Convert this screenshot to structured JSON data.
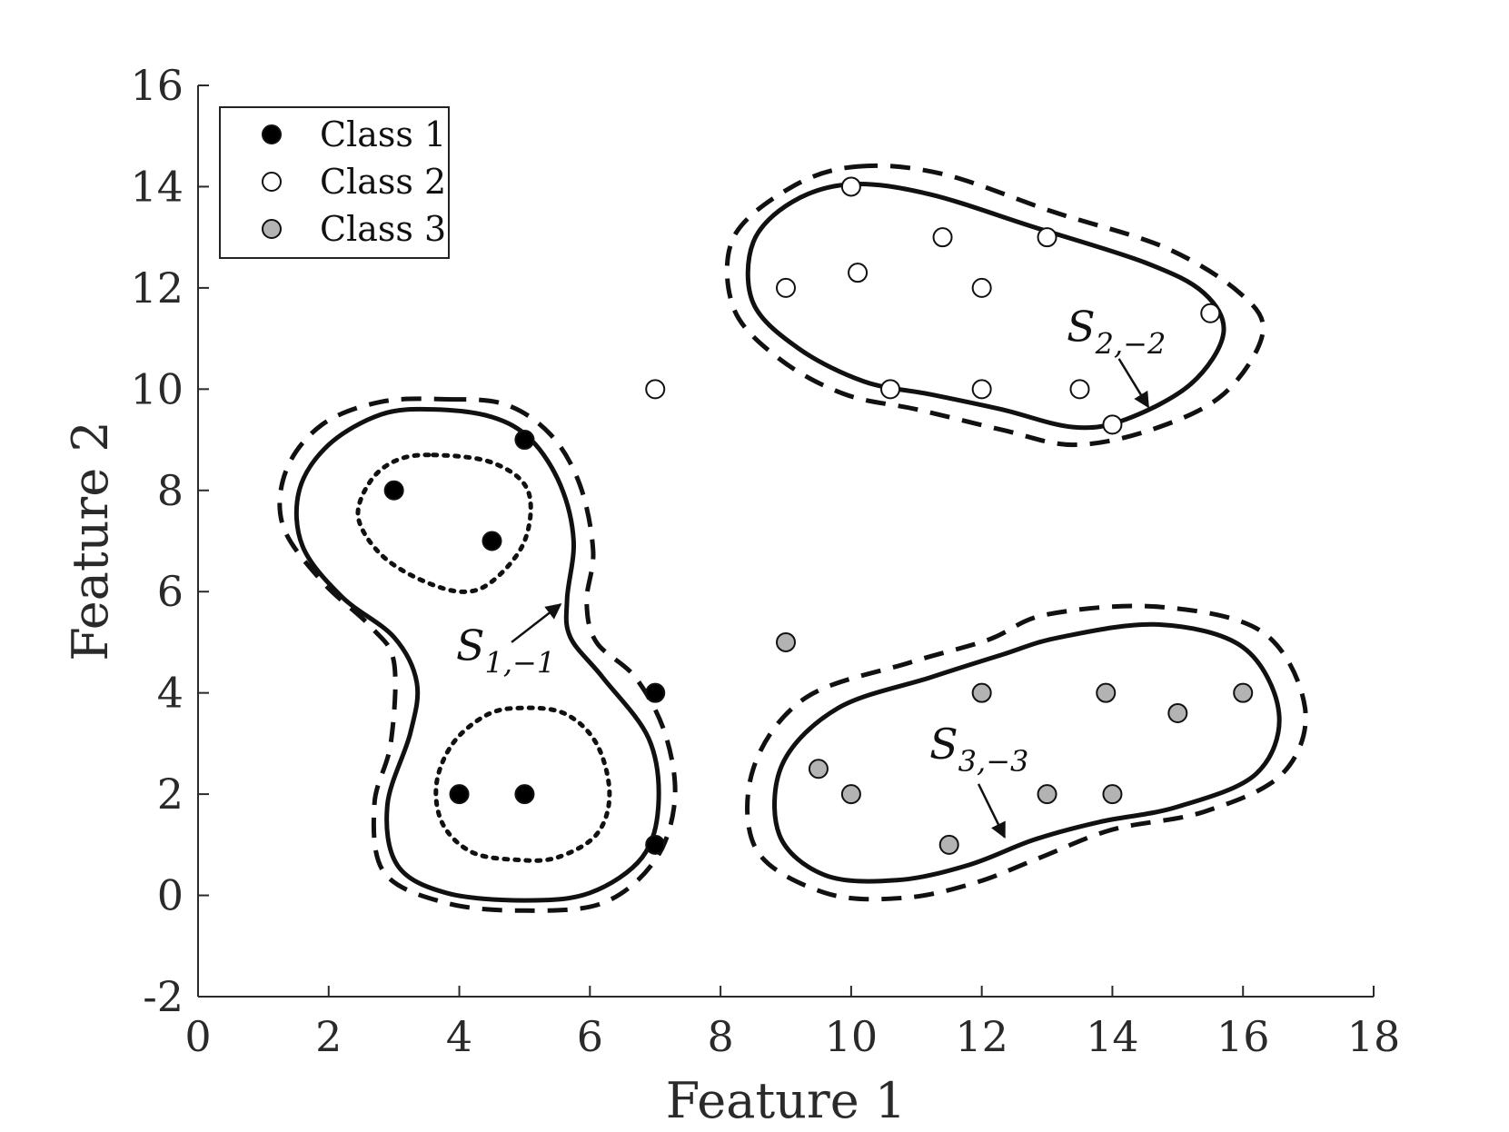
{
  "chart_data": {
    "type": "scatter",
    "title": "",
    "xlabel": "Feature 1",
    "ylabel": "Feature 2",
    "xlim": [
      0,
      18
    ],
    "ylim": [
      -2,
      16
    ],
    "xticks": [
      0,
      2,
      4,
      6,
      8,
      10,
      12,
      14,
      16,
      18
    ],
    "yticks": [
      -2,
      0,
      2,
      4,
      6,
      8,
      10,
      12,
      14,
      16
    ],
    "grid": false,
    "legend_position": "top-left",
    "series": [
      {
        "name": "Class 1",
        "marker": "filled-black",
        "color": "#000000",
        "points": [
          [
            3,
            8
          ],
          [
            4.5,
            7
          ],
          [
            5,
            9
          ],
          [
            4,
            2
          ],
          [
            5,
            2
          ],
          [
            7,
            4
          ],
          [
            7,
            1
          ]
        ]
      },
      {
        "name": "Class 2",
        "marker": "open-white",
        "color": "#ffffff",
        "points": [
          [
            10,
            14
          ],
          [
            11.4,
            13
          ],
          [
            13,
            13
          ],
          [
            9,
            12
          ],
          [
            10.1,
            12.3
          ],
          [
            12,
            12
          ],
          [
            15.5,
            11.5
          ],
          [
            7,
            10
          ],
          [
            10.6,
            10
          ],
          [
            12,
            10
          ],
          [
            13.5,
            10
          ],
          [
            14,
            9.3
          ]
        ]
      },
      {
        "name": "Class 3",
        "marker": "filled-gray",
        "color": "#b3b3b3",
        "points": [
          [
            9,
            5
          ],
          [
            12,
            4
          ],
          [
            13.9,
            4
          ],
          [
            15,
            3.6
          ],
          [
            16,
            4
          ],
          [
            9.5,
            2.5
          ],
          [
            10,
            2
          ],
          [
            13,
            2
          ],
          [
            14,
            2
          ],
          [
            11.5,
            1
          ]
        ]
      }
    ],
    "contours": [
      {
        "name": "class1-solid",
        "style": "solid",
        "points": [
          [
            3.6,
            9.6
          ],
          [
            4.5,
            9.45
          ],
          [
            5.1,
            9.0
          ],
          [
            5.55,
            8.1
          ],
          [
            5.75,
            7.0
          ],
          [
            5.65,
            5.85
          ],
          [
            5.7,
            5.1
          ],
          [
            6.2,
            4.3
          ],
          [
            6.9,
            3.1
          ],
          [
            7.05,
            1.8
          ],
          [
            6.8,
            0.75
          ],
          [
            6.0,
            0.05
          ],
          [
            5.0,
            -0.1
          ],
          [
            3.8,
            0.05
          ],
          [
            3.05,
            0.6
          ],
          [
            2.9,
            1.8
          ],
          [
            3.25,
            3.2
          ],
          [
            3.35,
            4.2
          ],
          [
            3.0,
            5.1
          ],
          [
            2.2,
            5.9
          ],
          [
            1.6,
            6.9
          ],
          [
            1.55,
            8.0
          ],
          [
            2.0,
            8.9
          ],
          [
            2.8,
            9.5
          ]
        ]
      },
      {
        "name": "class1-dashed",
        "style": "dashed",
        "points": [
          [
            3.8,
            9.8
          ],
          [
            4.7,
            9.7
          ],
          [
            5.4,
            9.1
          ],
          [
            5.85,
            8.1
          ],
          [
            6.05,
            6.8
          ],
          [
            5.95,
            5.8
          ],
          [
            6.1,
            5.0
          ],
          [
            6.7,
            4.3
          ],
          [
            7.15,
            3.2
          ],
          [
            7.3,
            1.9
          ],
          [
            7.0,
            0.7
          ],
          [
            6.2,
            -0.15
          ],
          [
            5.0,
            -0.3
          ],
          [
            3.8,
            -0.15
          ],
          [
            2.85,
            0.45
          ],
          [
            2.7,
            1.8
          ],
          [
            2.95,
            3.0
          ],
          [
            3.0,
            4.6
          ],
          [
            2.65,
            5.3
          ],
          [
            1.9,
            6.2
          ],
          [
            1.3,
            7.3
          ],
          [
            1.35,
            8.4
          ],
          [
            1.9,
            9.3
          ],
          [
            2.8,
            9.75
          ]
        ]
      },
      {
        "name": "class1-upper-dotted",
        "style": "dotted",
        "points": [
          [
            3.6,
            8.7
          ],
          [
            4.5,
            8.55
          ],
          [
            5.05,
            8.0
          ],
          [
            5.0,
            7.0
          ],
          [
            4.5,
            6.2
          ],
          [
            4.0,
            6.0
          ],
          [
            3.3,
            6.3
          ],
          [
            2.75,
            6.8
          ],
          [
            2.45,
            7.5
          ],
          [
            2.65,
            8.2
          ],
          [
            3.05,
            8.6
          ]
        ]
      },
      {
        "name": "class1-lower-dotted",
        "style": "dotted",
        "points": [
          [
            4.9,
            3.7
          ],
          [
            5.6,
            3.6
          ],
          [
            6.1,
            3.0
          ],
          [
            6.3,
            2.0
          ],
          [
            6.1,
            1.2
          ],
          [
            5.5,
            0.75
          ],
          [
            4.9,
            0.7
          ],
          [
            4.2,
            0.85
          ],
          [
            3.75,
            1.4
          ],
          [
            3.65,
            2.2
          ],
          [
            3.9,
            3.0
          ],
          [
            4.4,
            3.55
          ]
        ]
      },
      {
        "name": "class2-solid",
        "style": "solid",
        "points": [
          [
            10.0,
            14.05
          ],
          [
            11.2,
            13.85
          ],
          [
            12.8,
            13.2
          ],
          [
            14.5,
            12.5
          ],
          [
            15.4,
            11.9
          ],
          [
            15.7,
            11.1
          ],
          [
            15.2,
            10.1
          ],
          [
            14.2,
            9.4
          ],
          [
            13.4,
            9.25
          ],
          [
            12.3,
            9.6
          ],
          [
            11.2,
            9.9
          ],
          [
            10.2,
            10.15
          ],
          [
            9.2,
            10.8
          ],
          [
            8.5,
            11.7
          ],
          [
            8.5,
            12.9
          ],
          [
            9.1,
            13.7
          ]
        ]
      },
      {
        "name": "class2-dashed",
        "style": "dashed",
        "points": [
          [
            10.1,
            14.4
          ],
          [
            11.4,
            14.25
          ],
          [
            13.1,
            13.5
          ],
          [
            14.8,
            12.8
          ],
          [
            15.95,
            11.9
          ],
          [
            16.3,
            11.1
          ],
          [
            15.7,
            9.9
          ],
          [
            14.6,
            9.2
          ],
          [
            13.4,
            8.9
          ],
          [
            12.3,
            9.2
          ],
          [
            11.0,
            9.6
          ],
          [
            9.9,
            9.9
          ],
          [
            8.9,
            10.6
          ],
          [
            8.2,
            11.6
          ],
          [
            8.2,
            13.0
          ],
          [
            9.1,
            14.0
          ]
        ]
      },
      {
        "name": "class3-solid",
        "style": "solid",
        "points": [
          [
            13.2,
            5.1
          ],
          [
            14.7,
            5.35
          ],
          [
            16.0,
            4.9
          ],
          [
            16.55,
            3.6
          ],
          [
            16.2,
            2.4
          ],
          [
            15.0,
            1.75
          ],
          [
            13.8,
            1.45
          ],
          [
            12.8,
            1.1
          ],
          [
            11.8,
            0.6
          ],
          [
            10.7,
            0.3
          ],
          [
            9.6,
            0.4
          ],
          [
            8.9,
            1.2
          ],
          [
            8.95,
            2.6
          ],
          [
            9.8,
            3.7
          ],
          [
            11.2,
            4.3
          ],
          [
            12.3,
            4.75
          ]
        ]
      },
      {
        "name": "class3-dashed",
        "style": "dashed",
        "points": [
          [
            13.0,
            5.55
          ],
          [
            14.7,
            5.7
          ],
          [
            16.3,
            5.2
          ],
          [
            16.95,
            3.7
          ],
          [
            16.6,
            2.4
          ],
          [
            15.4,
            1.65
          ],
          [
            14.0,
            1.3
          ],
          [
            12.9,
            0.75
          ],
          [
            11.9,
            0.25
          ],
          [
            10.8,
            -0.05
          ],
          [
            9.6,
            0.05
          ],
          [
            8.55,
            0.9
          ],
          [
            8.5,
            2.5
          ],
          [
            9.3,
            3.9
          ],
          [
            10.9,
            4.6
          ],
          [
            12.1,
            5.05
          ]
        ]
      }
    ],
    "annotations": [
      {
        "label_main": "S",
        "label_sub": "1,−1",
        "text_at": [
          3.95,
          4.65
        ],
        "arrow_from": [
          4.8,
          5.0
        ],
        "arrow_to": [
          5.55,
          5.75
        ]
      },
      {
        "label_main": "S",
        "label_sub": "2,−2",
        "text_at": [
          13.3,
          10.95
        ],
        "arrow_from": [
          14.1,
          10.6
        ],
        "arrow_to": [
          14.55,
          9.65
        ]
      },
      {
        "label_main": "S",
        "label_sub": "3,−3",
        "text_at": [
          11.2,
          2.7
        ],
        "arrow_from": [
          11.95,
          2.2
        ],
        "arrow_to": [
          12.35,
          1.15
        ]
      }
    ]
  }
}
